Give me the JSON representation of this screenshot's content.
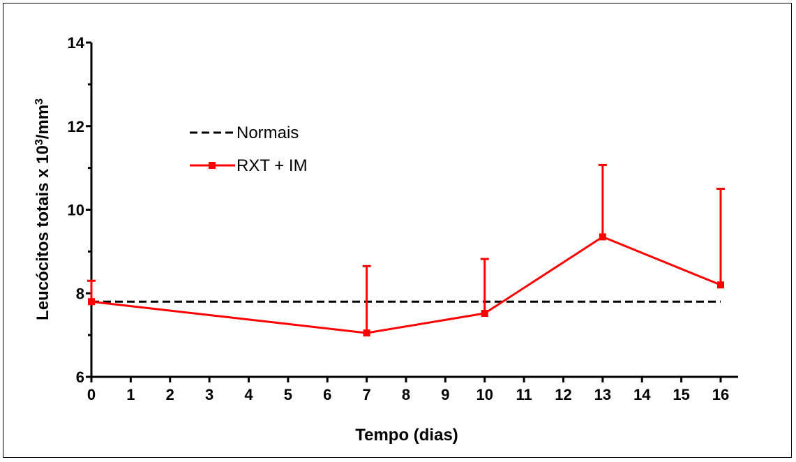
{
  "chart_data": {
    "type": "line",
    "xlabel": "Tempo (dias)",
    "ylabel": {
      "main": "Leucócitos totais x 10",
      "sup1": "3",
      "mid": "/mm",
      "sup2": "3"
    },
    "xlim": [
      0,
      16
    ],
    "ylim": [
      6,
      14
    ],
    "x_ticks": [
      0,
      1,
      2,
      3,
      4,
      5,
      6,
      7,
      8,
      9,
      10,
      11,
      12,
      13,
      14,
      15,
      16
    ],
    "y_major_ticks": [
      6,
      8,
      10,
      12,
      14
    ],
    "y_minor_ticks": [
      7,
      9,
      11,
      13
    ],
    "grid": false,
    "legend_position": "upper-left",
    "series": [
      {
        "name": "Normais",
        "style": "dashed",
        "color": "#000000",
        "x": [
          0,
          16
        ],
        "y": [
          7.8,
          7.8
        ]
      },
      {
        "name": "RXT + IM",
        "style": "solid-square-markers",
        "color": "#ff0000",
        "x": [
          0,
          7,
          10,
          13,
          16
        ],
        "y": [
          7.8,
          7.05,
          7.52,
          9.35,
          8.2
        ],
        "error_upper": [
          8.3,
          8.65,
          8.82,
          11.07,
          10.5
        ]
      }
    ]
  }
}
